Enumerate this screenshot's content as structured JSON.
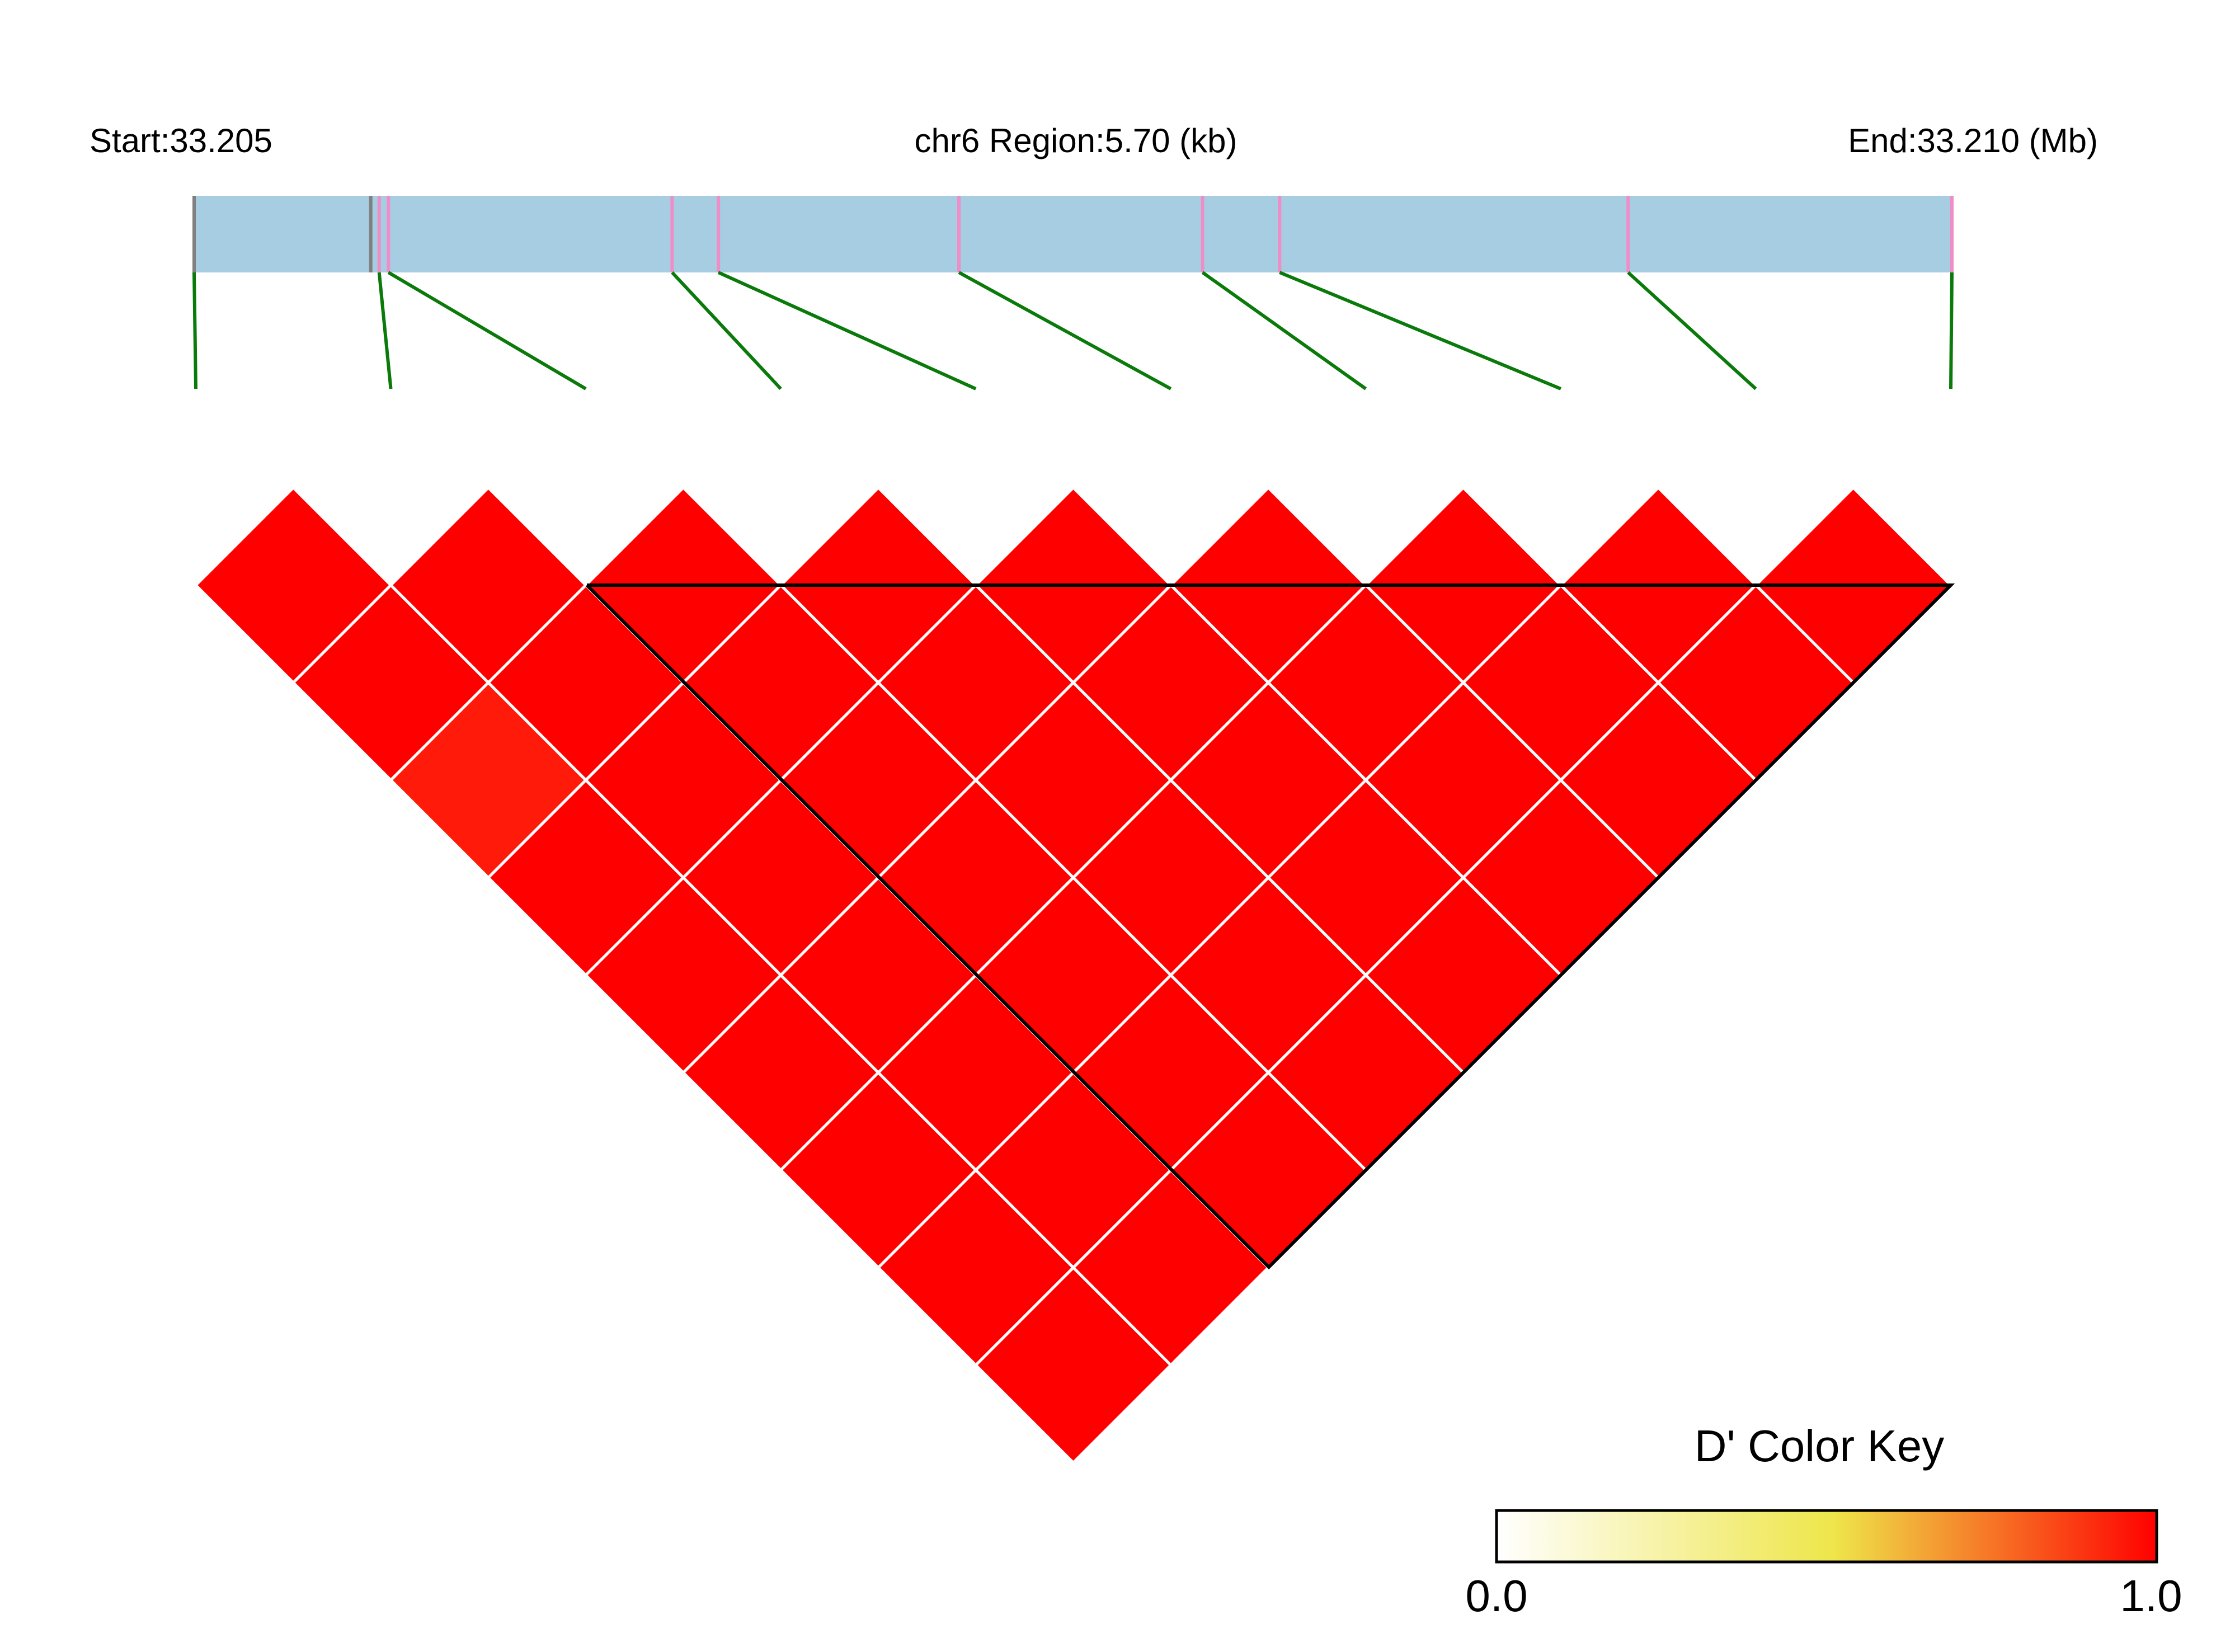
{
  "chart_data": {
    "type": "heatmap",
    "subtype": "linkage-disequilibrium-triangle",
    "header": {
      "start_label": "Start:33.205",
      "region_label": "chr6 Region:5.70 (kb)",
      "end_label": "End:33.210 (Mb)"
    },
    "colors": {
      "region_bar": "#a6cde2",
      "snp_tick": "#f08cc8",
      "edge_tick": "#808080",
      "connector": "#0a7a0a",
      "cell_border": "#ffffff",
      "block_outline": "#000000"
    },
    "snp_positions_kb": [
      0.0,
      0.6,
      0.63,
      1.55,
      1.7,
      2.48,
      3.27,
      3.52,
      4.65,
      5.7
    ],
    "region_length_kb": 5.7,
    "ld_metric": "D'",
    "d_prime": [
      [
        1.0,
        1.0,
        1.0,
        1.0,
        1.0,
        1.0,
        1.0,
        1.0,
        1.0
      ],
      [
        1.0,
        1.0,
        1.0,
        1.0,
        1.0,
        1.0,
        1.0,
        1.0
      ],
      [
        0.95,
        1.0,
        1.0,
        1.0,
        1.0,
        1.0,
        1.0
      ],
      [
        1.0,
        1.0,
        1.0,
        1.0,
        1.0,
        1.0
      ],
      [
        1.0,
        1.0,
        1.0,
        1.0,
        1.0
      ],
      [
        1.0,
        1.0,
        1.0,
        1.0
      ],
      [
        1.0,
        1.0,
        1.0
      ],
      [
        1.0,
        1.0
      ],
      [
        1.0
      ]
    ],
    "ld_block": {
      "first_snp": 3,
      "last_snp": 10
    },
    "color_key": {
      "title": "D' Color Key",
      "min_label": "0.0",
      "max_label": "1.0",
      "min": 0.0,
      "max": 1.0,
      "stops": [
        "#ffffff",
        "#eee64a",
        "#ff0000"
      ]
    }
  }
}
